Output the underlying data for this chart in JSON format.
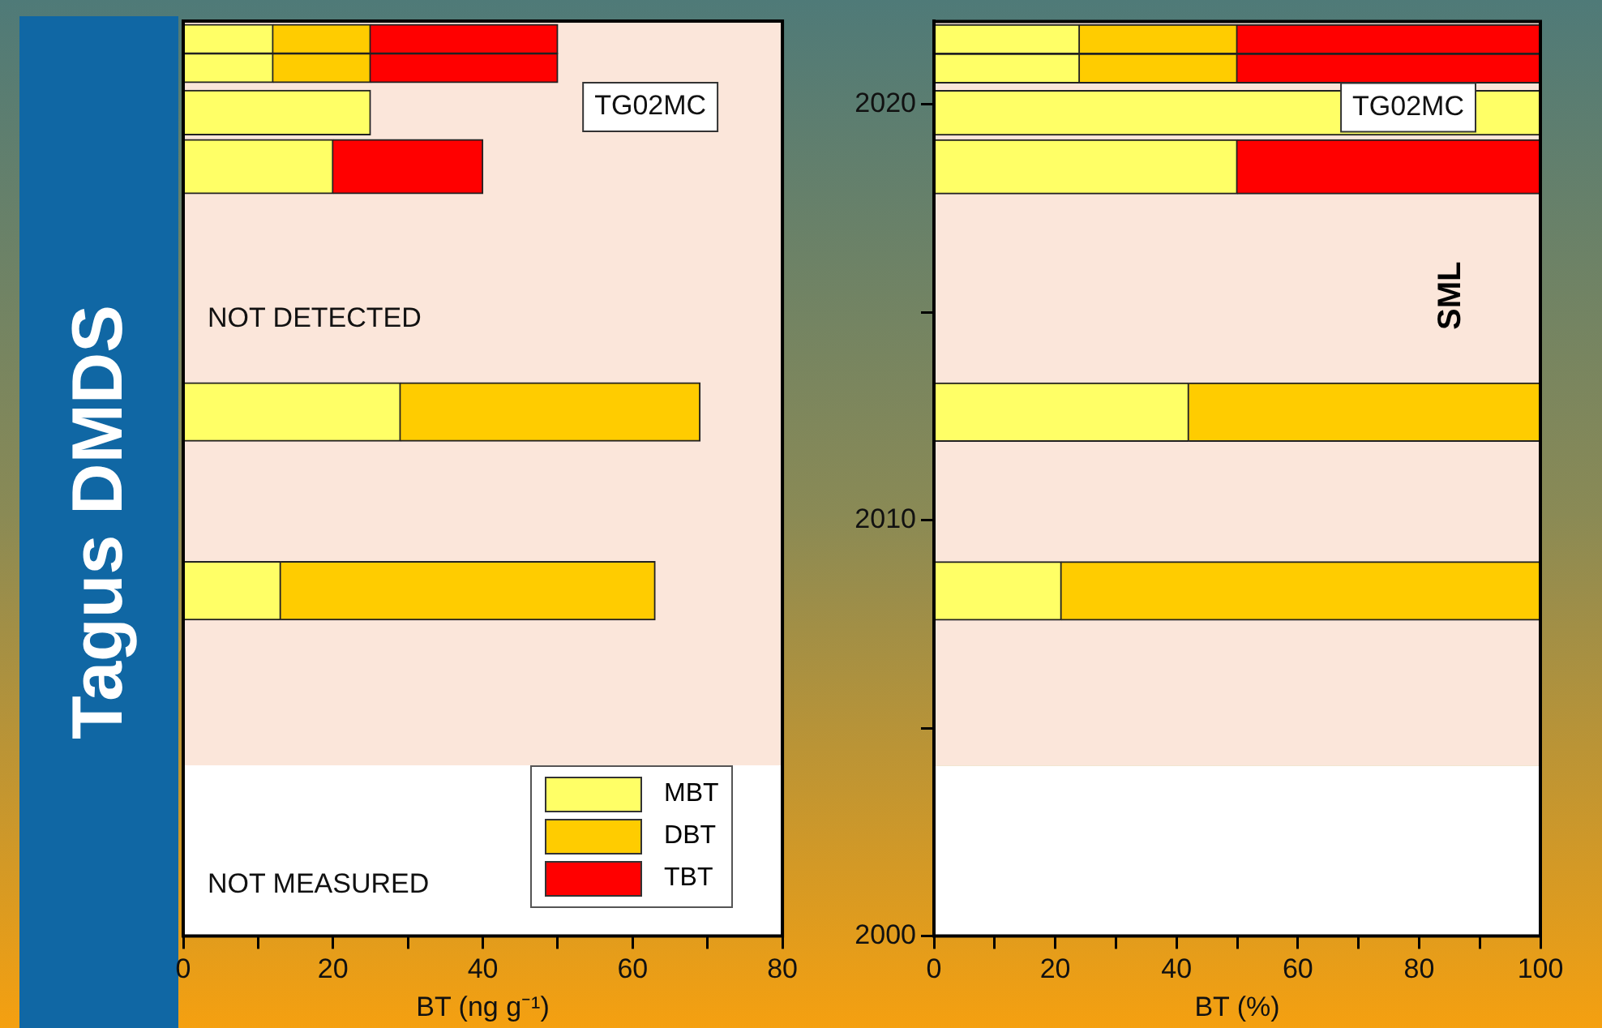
{
  "chart_data": [
    {
      "type": "bar",
      "title": "Tagus DMDS",
      "orientation": "horizontal",
      "stacked": true,
      "xlabel": "BT (ng g⁻¹)",
      "x": [
        2021.57,
        2020.87,
        2019.8,
        2018.5,
        2012.6,
        2008.3
      ],
      "ylim": [
        2000,
        2022
      ],
      "xlim": [
        0,
        80
      ],
      "xticks": [
        0,
        {
          "value": 10,
          "label": null
        },
        20,
        {
          "value": 30,
          "label": null
        },
        40,
        {
          "value": 50,
          "label": null
        },
        60,
        {
          "value": 70,
          "label": null
        },
        80
      ],
      "tick_labels": "x",
      "grid": false,
      "legend": "bottom right",
      "series": [
        {
          "name": "MBT",
          "color": "#ffff66",
          "values": [
            12,
            12,
            25,
            20,
            29,
            13
          ]
        },
        {
          "name": "DBT",
          "color": "#ffcc00",
          "values": [
            13,
            13,
            null,
            null,
            40,
            50
          ]
        },
        {
          "name": "TBT",
          "color": "#ff0000",
          "values": [
            25,
            25,
            null,
            20,
            null,
            null
          ]
        }
      ],
      "bands": [
        {
          "axis": "y",
          "from": 2000,
          "to": 2004.1,
          "label": "NOT MEASURED",
          "color": "#ffffff"
        },
        {
          "axis": "y",
          "from": 2004.1,
          "to": 2022,
          "label": "NOT DETECTED",
          "color": "#fbe6da"
        }
      ],
      "annotations": [
        "TG02MC"
      ]
    },
    {
      "type": "bar",
      "orientation": "horizontal",
      "stacked": true,
      "xlabel": "BT (%)",
      "x": [
        2021.57,
        2020.87,
        2019.8,
        2018.5,
        2012.6,
        2008.3
      ],
      "ylim": [
        2000,
        2022
      ],
      "yticks": [
        2000,
        {
          "value": 2005,
          "label": null
        },
        2010,
        {
          "value": 2015,
          "label": null
        },
        2020
      ],
      "xlim": [
        0,
        100
      ],
      "xticks": [
        0,
        {
          "value": 10,
          "label": null
        },
        20,
        {
          "value": 30,
          "label": null
        },
        40,
        {
          "value": 50,
          "label": null
        },
        60,
        {
          "value": 70,
          "label": null
        },
        80,
        {
          "value": 90,
          "label": null
        },
        100
      ],
      "grid": false,
      "legend": false,
      "series": [
        {
          "color": "#ffff66",
          "values": [
            24,
            24,
            100,
            50,
            42,
            21
          ]
        },
        {
          "color": "#ffcc00",
          "values": [
            26,
            26,
            null,
            null,
            58,
            79
          ]
        },
        {
          "color": "#ff0000",
          "values": [
            50,
            50,
            null,
            50,
            null,
            null
          ]
        }
      ],
      "bands": [
        {
          "axis": "y",
          "from": 2000,
          "to": 2004.1,
          "color": "#ffffff"
        },
        {
          "axis": "y",
          "from": 2004.1,
          "to": 2022,
          "color": "#fbe6da"
        }
      ],
      "annotations": [
        "TG02MC",
        "SML"
      ]
    }
  ]
}
